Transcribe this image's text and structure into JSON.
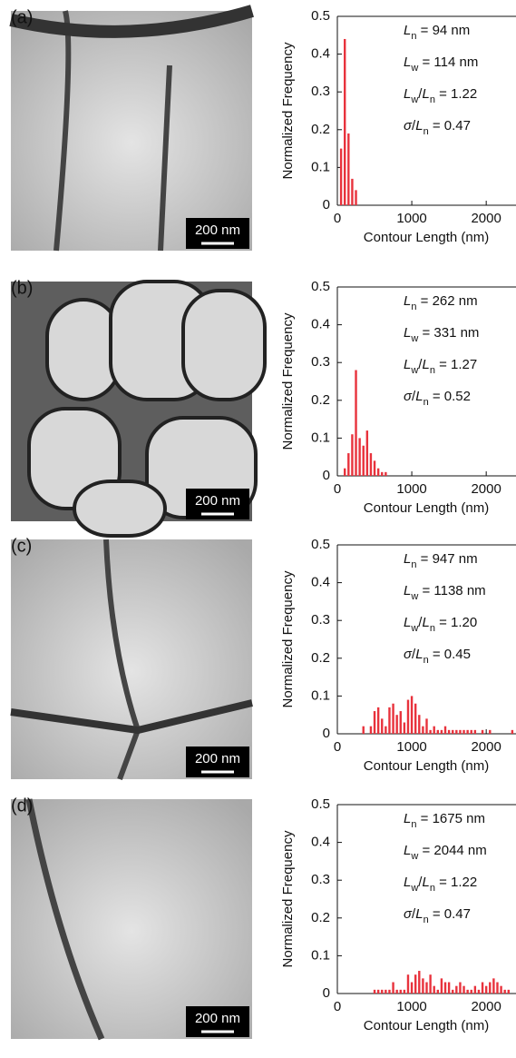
{
  "chart_data": [
    {
      "type": "bar",
      "label": "(a)",
      "scale_bar": "200 nm",
      "annotations": [
        [
          {
            "text": "L",
            "style": "italic"
          },
          {
            "text": "n",
            "style": "sub"
          },
          {
            "text": " = 94 nm",
            "style": "normal"
          }
        ],
        [
          {
            "text": "L",
            "style": "italic"
          },
          {
            "text": "w",
            "style": "sub"
          },
          {
            "text": " = 114 nm",
            "style": "normal"
          }
        ],
        [
          {
            "text": "L",
            "style": "italic"
          },
          {
            "text": "w",
            "style": "sub"
          },
          {
            "text": "/",
            "style": "normal"
          },
          {
            "text": "L",
            "style": "italic"
          },
          {
            "text": "n",
            "style": "sub"
          },
          {
            "text": " = 1.22",
            "style": "normal"
          }
        ],
        [
          {
            "text": "σ",
            "style": "italic"
          },
          {
            "text": "/",
            "style": "normal"
          },
          {
            "text": "L",
            "style": "italic"
          },
          {
            "text": "n",
            "style": "sub"
          },
          {
            "text": " = 0.47",
            "style": "normal"
          }
        ]
      ],
      "x_label": "Contour Length (nm)",
      "y_label": "Normalized Frequency",
      "x": [
        50,
        100,
        150,
        200,
        250
      ],
      "values": [
        0.15,
        0.44,
        0.19,
        0.07,
        0.04
      ],
      "color": "#e8323c",
      "xlim": [
        0,
        2400
      ],
      "ylim": [
        0,
        0.5
      ],
      "xticks": [
        0,
        1000,
        2000
      ],
      "yticks": [
        0,
        0.1,
        0.2,
        0.3,
        0.4,
        0.5
      ]
    },
    {
      "type": "bar",
      "label": "(b)",
      "scale_bar": "200 nm",
      "annotations": [
        [
          {
            "text": "L",
            "style": "italic"
          },
          {
            "text": "n",
            "style": "sub"
          },
          {
            "text": " = 262 nm",
            "style": "normal"
          }
        ],
        [
          {
            "text": "L",
            "style": "italic"
          },
          {
            "text": "w",
            "style": "sub"
          },
          {
            "text": " = 331 nm",
            "style": "normal"
          }
        ],
        [
          {
            "text": "L",
            "style": "italic"
          },
          {
            "text": "w",
            "style": "sub"
          },
          {
            "text": "/",
            "style": "normal"
          },
          {
            "text": "L",
            "style": "italic"
          },
          {
            "text": "n",
            "style": "sub"
          },
          {
            "text": " = 1.27",
            "style": "normal"
          }
        ],
        [
          {
            "text": "σ",
            "style": "italic"
          },
          {
            "text": "/",
            "style": "normal"
          },
          {
            "text": "L",
            "style": "italic"
          },
          {
            "text": "n",
            "style": "sub"
          },
          {
            "text": " = 0.52",
            "style": "normal"
          }
        ]
      ],
      "x_label": "Contour Length (nm)",
      "y_label": "Normalized Frequency",
      "x": [
        100,
        150,
        200,
        250,
        300,
        350,
        400,
        450,
        500,
        550,
        600,
        650
      ],
      "values": [
        0.02,
        0.06,
        0.11,
        0.28,
        0.1,
        0.08,
        0.12,
        0.06,
        0.04,
        0.02,
        0.01,
        0.01
      ],
      "color": "#e8323c",
      "xlim": [
        0,
        2400
      ],
      "ylim": [
        0,
        0.5
      ],
      "xticks": [
        0,
        1000,
        2000
      ],
      "yticks": [
        0,
        0.1,
        0.2,
        0.3,
        0.4,
        0.5
      ]
    },
    {
      "type": "bar",
      "label": "(c)",
      "scale_bar": "200 nm",
      "annotations": [
        [
          {
            "text": "L",
            "style": "italic"
          },
          {
            "text": "n",
            "style": "sub"
          },
          {
            "text": " = 947 nm",
            "style": "normal"
          }
        ],
        [
          {
            "text": "L",
            "style": "italic"
          },
          {
            "text": "w",
            "style": "sub"
          },
          {
            "text": " = 1138 nm",
            "style": "normal"
          }
        ],
        [
          {
            "text": "L",
            "style": "italic"
          },
          {
            "text": "w",
            "style": "sub"
          },
          {
            "text": "/",
            "style": "normal"
          },
          {
            "text": "L",
            "style": "italic"
          },
          {
            "text": "n",
            "style": "sub"
          },
          {
            "text": " = 1.20",
            "style": "normal"
          }
        ],
        [
          {
            "text": "σ",
            "style": "italic"
          },
          {
            "text": "/",
            "style": "normal"
          },
          {
            "text": "L",
            "style": "italic"
          },
          {
            "text": "n",
            "style": "sub"
          },
          {
            "text": " = 0.45",
            "style": "normal"
          }
        ]
      ],
      "x_label": "Contour Length (nm)",
      "y_label": "Normalized Frequency",
      "x": [
        350,
        450,
        500,
        550,
        600,
        650,
        700,
        750,
        800,
        850,
        900,
        950,
        1000,
        1050,
        1100,
        1150,
        1200,
        1250,
        1300,
        1350,
        1400,
        1450,
        1500,
        1550,
        1600,
        1650,
        1700,
        1750,
        1800,
        1850,
        1950,
        2050,
        2350
      ],
      "values": [
        0.02,
        0.02,
        0.06,
        0.07,
        0.04,
        0.02,
        0.07,
        0.08,
        0.05,
        0.06,
        0.03,
        0.09,
        0.1,
        0.08,
        0.05,
        0.02,
        0.04,
        0.01,
        0.02,
        0.01,
        0.01,
        0.02,
        0.01,
        0.01,
        0.01,
        0.01,
        0.01,
        0.01,
        0.01,
        0.01,
        0.01,
        0.01,
        0.01
      ],
      "color": "#e8323c",
      "xlim": [
        0,
        2400
      ],
      "ylim": [
        0,
        0.5
      ],
      "xticks": [
        0,
        1000,
        2000
      ],
      "yticks": [
        0,
        0.1,
        0.2,
        0.3,
        0.4,
        0.5
      ]
    },
    {
      "type": "bar",
      "label": "(d)",
      "scale_bar": "200 nm",
      "annotations": [
        [
          {
            "text": "L",
            "style": "italic"
          },
          {
            "text": "n",
            "style": "sub"
          },
          {
            "text": " = 1675 nm",
            "style": "normal"
          }
        ],
        [
          {
            "text": "L",
            "style": "italic"
          },
          {
            "text": "w",
            "style": "sub"
          },
          {
            "text": " = 2044 nm",
            "style": "normal"
          }
        ],
        [
          {
            "text": "L",
            "style": "italic"
          },
          {
            "text": "w",
            "style": "sub"
          },
          {
            "text": "/",
            "style": "normal"
          },
          {
            "text": "L",
            "style": "italic"
          },
          {
            "text": "n",
            "style": "sub"
          },
          {
            "text": " = 1.22",
            "style": "normal"
          }
        ],
        [
          {
            "text": "σ",
            "style": "italic"
          },
          {
            "text": "/",
            "style": "normal"
          },
          {
            "text": "L",
            "style": "italic"
          },
          {
            "text": "n",
            "style": "sub"
          },
          {
            "text": " = 0.47",
            "style": "normal"
          }
        ]
      ],
      "x_label": "Contour Length (nm)",
      "y_label": "Normalized Frequency",
      "x": [
        500,
        550,
        600,
        650,
        700,
        750,
        800,
        850,
        900,
        950,
        1000,
        1050,
        1100,
        1150,
        1200,
        1250,
        1300,
        1350,
        1400,
        1450,
        1500,
        1550,
        1600,
        1650,
        1700,
        1750,
        1800,
        1850,
        1900,
        1950,
        2000,
        2050,
        2100,
        2150,
        2200,
        2250,
        2300
      ],
      "values": [
        0.01,
        0.01,
        0.01,
        0.01,
        0.01,
        0.03,
        0.01,
        0.01,
        0.01,
        0.05,
        0.03,
        0.05,
        0.06,
        0.04,
        0.03,
        0.05,
        0.02,
        0.01,
        0.04,
        0.03,
        0.03,
        0.01,
        0.02,
        0.03,
        0.02,
        0.01,
        0.01,
        0.02,
        0.01,
        0.03,
        0.02,
        0.03,
        0.04,
        0.03,
        0.02,
        0.01,
        0.01
      ],
      "color": "#e8323c",
      "xlim": [
        0,
        2400
      ],
      "ylim": [
        0,
        0.5
      ],
      "xticks": [
        0,
        1000,
        2000
      ],
      "yticks": [
        0,
        0.1,
        0.2,
        0.3,
        0.4,
        0.5
      ]
    }
  ]
}
